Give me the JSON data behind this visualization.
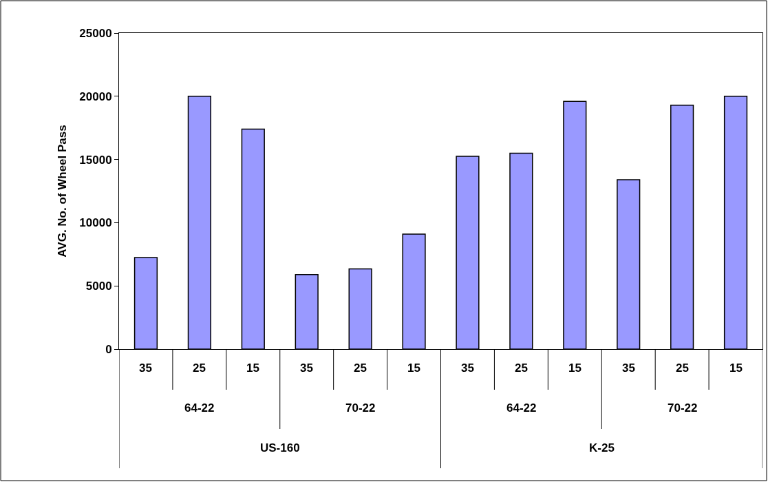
{
  "chart_data": {
    "type": "bar",
    "ylabel": "AVG. No. of Wheel Pass",
    "categories": [
      "35",
      "25",
      "15",
      "35",
      "25",
      "15",
      "35",
      "25",
      "15",
      "35",
      "25",
      "15"
    ],
    "values": [
      7250,
      20000,
      17400,
      5900,
      6350,
      9100,
      15250,
      15500,
      19600,
      13400,
      19300,
      20000
    ],
    "color": "#9999ff",
    "annotations": [
      "64-22",
      "70-22",
      "64-22",
      "70-22",
      "US-160",
      "K-25"
    ],
    "ylim": [
      0,
      25000
    ],
    "yticks": [
      0,
      5000,
      10000,
      15000,
      20000,
      25000
    ]
  }
}
